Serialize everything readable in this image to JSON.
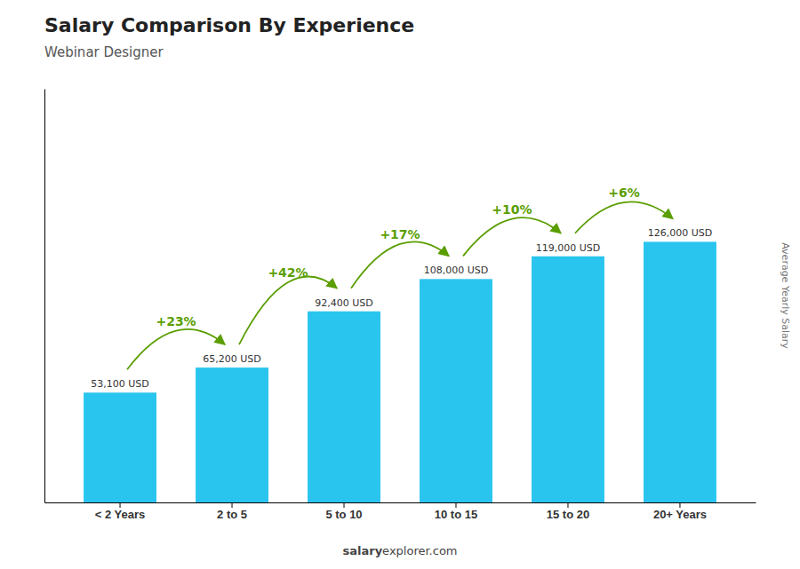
{
  "chart_data": {
    "type": "bar",
    "title": "Salary Comparison By Experience",
    "subtitle": "Webinar Designer",
    "y_label": "Average Yearly Salary",
    "categories": [
      "< 2 Years",
      "2 to 5",
      "5 to 10",
      "10 to 15",
      "15 to 20",
      "20+ Years"
    ],
    "values": [
      53100,
      65200,
      92400,
      108000,
      119000,
      126000
    ],
    "value_labels": [
      "53,100 USD",
      "65,200 USD",
      "92,400 USD",
      "108,000 USD",
      "119,000 USD",
      "126,000 USD"
    ],
    "data_labels": true,
    "color": "#29c5ef",
    "ylim": [
      0,
      200000
    ],
    "tick_labels": "x",
    "grid": false,
    "annotations": [
      "+23%",
      "+42%",
      "+17%",
      "+10%",
      "+6%"
    ],
    "watermark": [
      "salary",
      "explorer.com"
    ]
  }
}
